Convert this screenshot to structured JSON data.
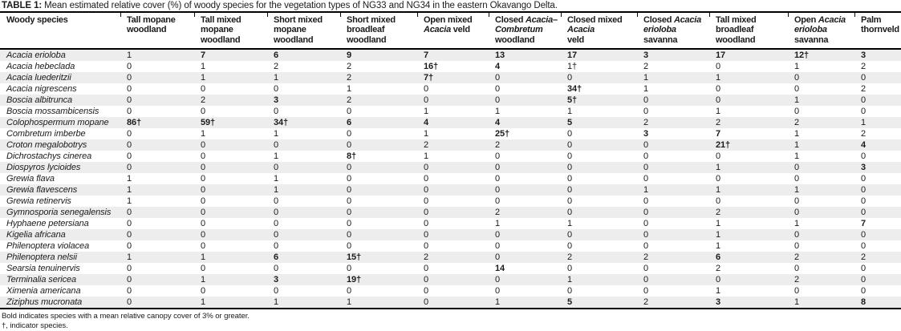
{
  "caption": {
    "label": "TABLE 1:",
    "text": "Mean estimated relative cover (%) of woody species for the vegetation types of NG33 and NG34 in the eastern Okavango Delta."
  },
  "table": {
    "species_header": "Woody species",
    "bold_rule_min": 3,
    "columns": [
      [
        {
          "t": "Tall mopane"
        },
        {
          "br": true
        },
        {
          "t": "woodland"
        }
      ],
      [
        {
          "t": "Tall mixed"
        },
        {
          "br": true
        },
        {
          "t": "mopane"
        },
        {
          "br": true
        },
        {
          "t": "woodland"
        }
      ],
      [
        {
          "t": "Short mixed"
        },
        {
          "br": true
        },
        {
          "t": "mopane"
        },
        {
          "br": true
        },
        {
          "t": "woodland"
        }
      ],
      [
        {
          "t": "Short mixed"
        },
        {
          "br": true
        },
        {
          "t": "broadleaf"
        },
        {
          "br": true
        },
        {
          "t": "woodland"
        }
      ],
      [
        {
          "t": "Open mixed"
        },
        {
          "br": true
        },
        {
          "t": "Acacia",
          "i": true
        },
        {
          "t": " veld"
        }
      ],
      [
        {
          "t": "Closed "
        },
        {
          "t": "Acacia–",
          "i": true
        },
        {
          "br": true
        },
        {
          "t": "Combretum",
          "i": true
        },
        {
          "br": true
        },
        {
          "t": "woodland"
        }
      ],
      [
        {
          "t": "Closed mixed"
        },
        {
          "br": true
        },
        {
          "t": "Acacia",
          "i": true
        },
        {
          "br": true
        },
        {
          "t": "veld"
        }
      ],
      [
        {
          "t": "Closed "
        },
        {
          "t": "Acacia",
          "i": true
        },
        {
          "br": true
        },
        {
          "t": "erioloba",
          "i": true
        },
        {
          "br": true
        },
        {
          "t": "savanna"
        }
      ],
      [
        {
          "t": "Tall mixed"
        },
        {
          "br": true
        },
        {
          "t": "broadleaf"
        },
        {
          "br": true
        },
        {
          "t": "woodland"
        }
      ],
      [
        {
          "t": "Open "
        },
        {
          "t": "Acacia",
          "i": true
        },
        {
          "br": true
        },
        {
          "t": "erioloba",
          "i": true
        },
        {
          "br": true
        },
        {
          "t": "savanna"
        }
      ],
      [
        {
          "t": "Palm"
        },
        {
          "br": true
        },
        {
          "t": "thornveld"
        }
      ]
    ],
    "rows": [
      {
        "species": "Acacia erioloba",
        "values": [
          "1",
          "7",
          "6",
          "9",
          "7",
          "13",
          "17",
          "3",
          "17",
          "12†",
          "3"
        ]
      },
      {
        "species": "Acacia hebeclada",
        "values": [
          "0",
          "1",
          "2",
          "2",
          "16†",
          "4",
          "1†",
          "2",
          "0",
          "1",
          "2"
        ]
      },
      {
        "species": "Acacia luederitzii",
        "values": [
          "0",
          "1",
          "1",
          "2",
          "7†",
          "0",
          "0",
          "1",
          "1",
          "0",
          "0"
        ]
      },
      {
        "species": "Acacia nigrescens",
        "values": [
          "0",
          "0",
          "0",
          "1",
          "0",
          "0",
          "34†",
          "1",
          "0",
          "0",
          "2"
        ]
      },
      {
        "species": "Boscia albitrunca",
        "values": [
          "0",
          "2",
          "3",
          "2",
          "0",
          "0",
          "5†",
          "0",
          "0",
          "1",
          "0"
        ]
      },
      {
        "species": "Boscia mossambicensis",
        "values": [
          "0",
          "0",
          "0",
          "0",
          "1",
          "1",
          "1",
          "0",
          "1",
          "0",
          "0"
        ]
      },
      {
        "species": "Colophospermum mopane",
        "values": [
          "86†",
          "59†",
          "34†",
          "6",
          "4",
          "4",
          "5",
          "2",
          "2",
          "2",
          "1"
        ]
      },
      {
        "species": "Combretum imberbe",
        "values": [
          "0",
          "1",
          "1",
          "0",
          "1",
          "25†",
          "0",
          "3",
          "7",
          "1",
          "2"
        ]
      },
      {
        "species": "Croton megalobotrys",
        "values": [
          "0",
          "0",
          "0",
          "0",
          "2",
          "2",
          "0",
          "0",
          "21†",
          "1",
          "4"
        ]
      },
      {
        "species": "Dichrostachys cinerea",
        "values": [
          "0",
          "0",
          "1",
          "8†",
          "1",
          "0",
          "0",
          "0",
          "0",
          "1",
          "0"
        ]
      },
      {
        "species": "Diospyros lycioides",
        "values": [
          "0",
          "0",
          "0",
          "0",
          "0",
          "0",
          "0",
          "0",
          "1",
          "0",
          "3"
        ]
      },
      {
        "species": "Grewia flava",
        "values": [
          "1",
          "0",
          "1",
          "0",
          "0",
          "0",
          "0",
          "0",
          "0",
          "0",
          "0"
        ]
      },
      {
        "species": "Grewia flavescens",
        "values": [
          "1",
          "0",
          "1",
          "0",
          "0",
          "0",
          "0",
          "1",
          "1",
          "1",
          "0"
        ]
      },
      {
        "species": "Grewia retinervis",
        "values": [
          "1",
          "0",
          "0",
          "0",
          "0",
          "0",
          "0",
          "0",
          "0",
          "0",
          "0"
        ]
      },
      {
        "species": "Gymnosporia senegalensis",
        "values": [
          "0",
          "0",
          "0",
          "0",
          "0",
          "2",
          "0",
          "0",
          "2",
          "0",
          "0"
        ]
      },
      {
        "species": "Hyphaene petersiana",
        "values": [
          "0",
          "0",
          "0",
          "0",
          "0",
          "1",
          "1",
          "0",
          "1",
          "1",
          "7"
        ]
      },
      {
        "species": "Kigelia africana",
        "values": [
          "0",
          "0",
          "0",
          "0",
          "0",
          "0",
          "0",
          "0",
          "1",
          "0",
          "0"
        ]
      },
      {
        "species": "Philenoptera violacea",
        "values": [
          "0",
          "0",
          "0",
          "0",
          "0",
          "0",
          "0",
          "0",
          "1",
          "0",
          "0"
        ]
      },
      {
        "species": "Philenoptera nelsii",
        "values": [
          "1",
          "1",
          "6",
          "15†",
          "2",
          "0",
          "2",
          "2",
          "6",
          "2",
          "2"
        ]
      },
      {
        "species": "Searsia tenuinervis",
        "values": [
          "0",
          "0",
          "0",
          "0",
          "0",
          "14",
          "0",
          "0",
          "2",
          "0",
          "0"
        ]
      },
      {
        "species": "Terminalia sericea",
        "values": [
          "0",
          "1",
          "3",
          "19†",
          "0",
          "0",
          "1",
          "0",
          "0",
          "2",
          "0"
        ]
      },
      {
        "species": "Ximenia americana",
        "values": [
          "0",
          "0",
          "0",
          "0",
          "0",
          "0",
          "0",
          "0",
          "1",
          "0",
          "0"
        ]
      },
      {
        "species": "Ziziphus mucronata",
        "values": [
          "0",
          "1",
          "1",
          "1",
          "0",
          "1",
          "5",
          "2",
          "3",
          "1",
          "8"
        ]
      }
    ]
  },
  "footnotes": {
    "bold_note": "Bold indicates species with a mean relative canopy cover of 3% or greater.",
    "dagger_note": "†, indicator species."
  }
}
